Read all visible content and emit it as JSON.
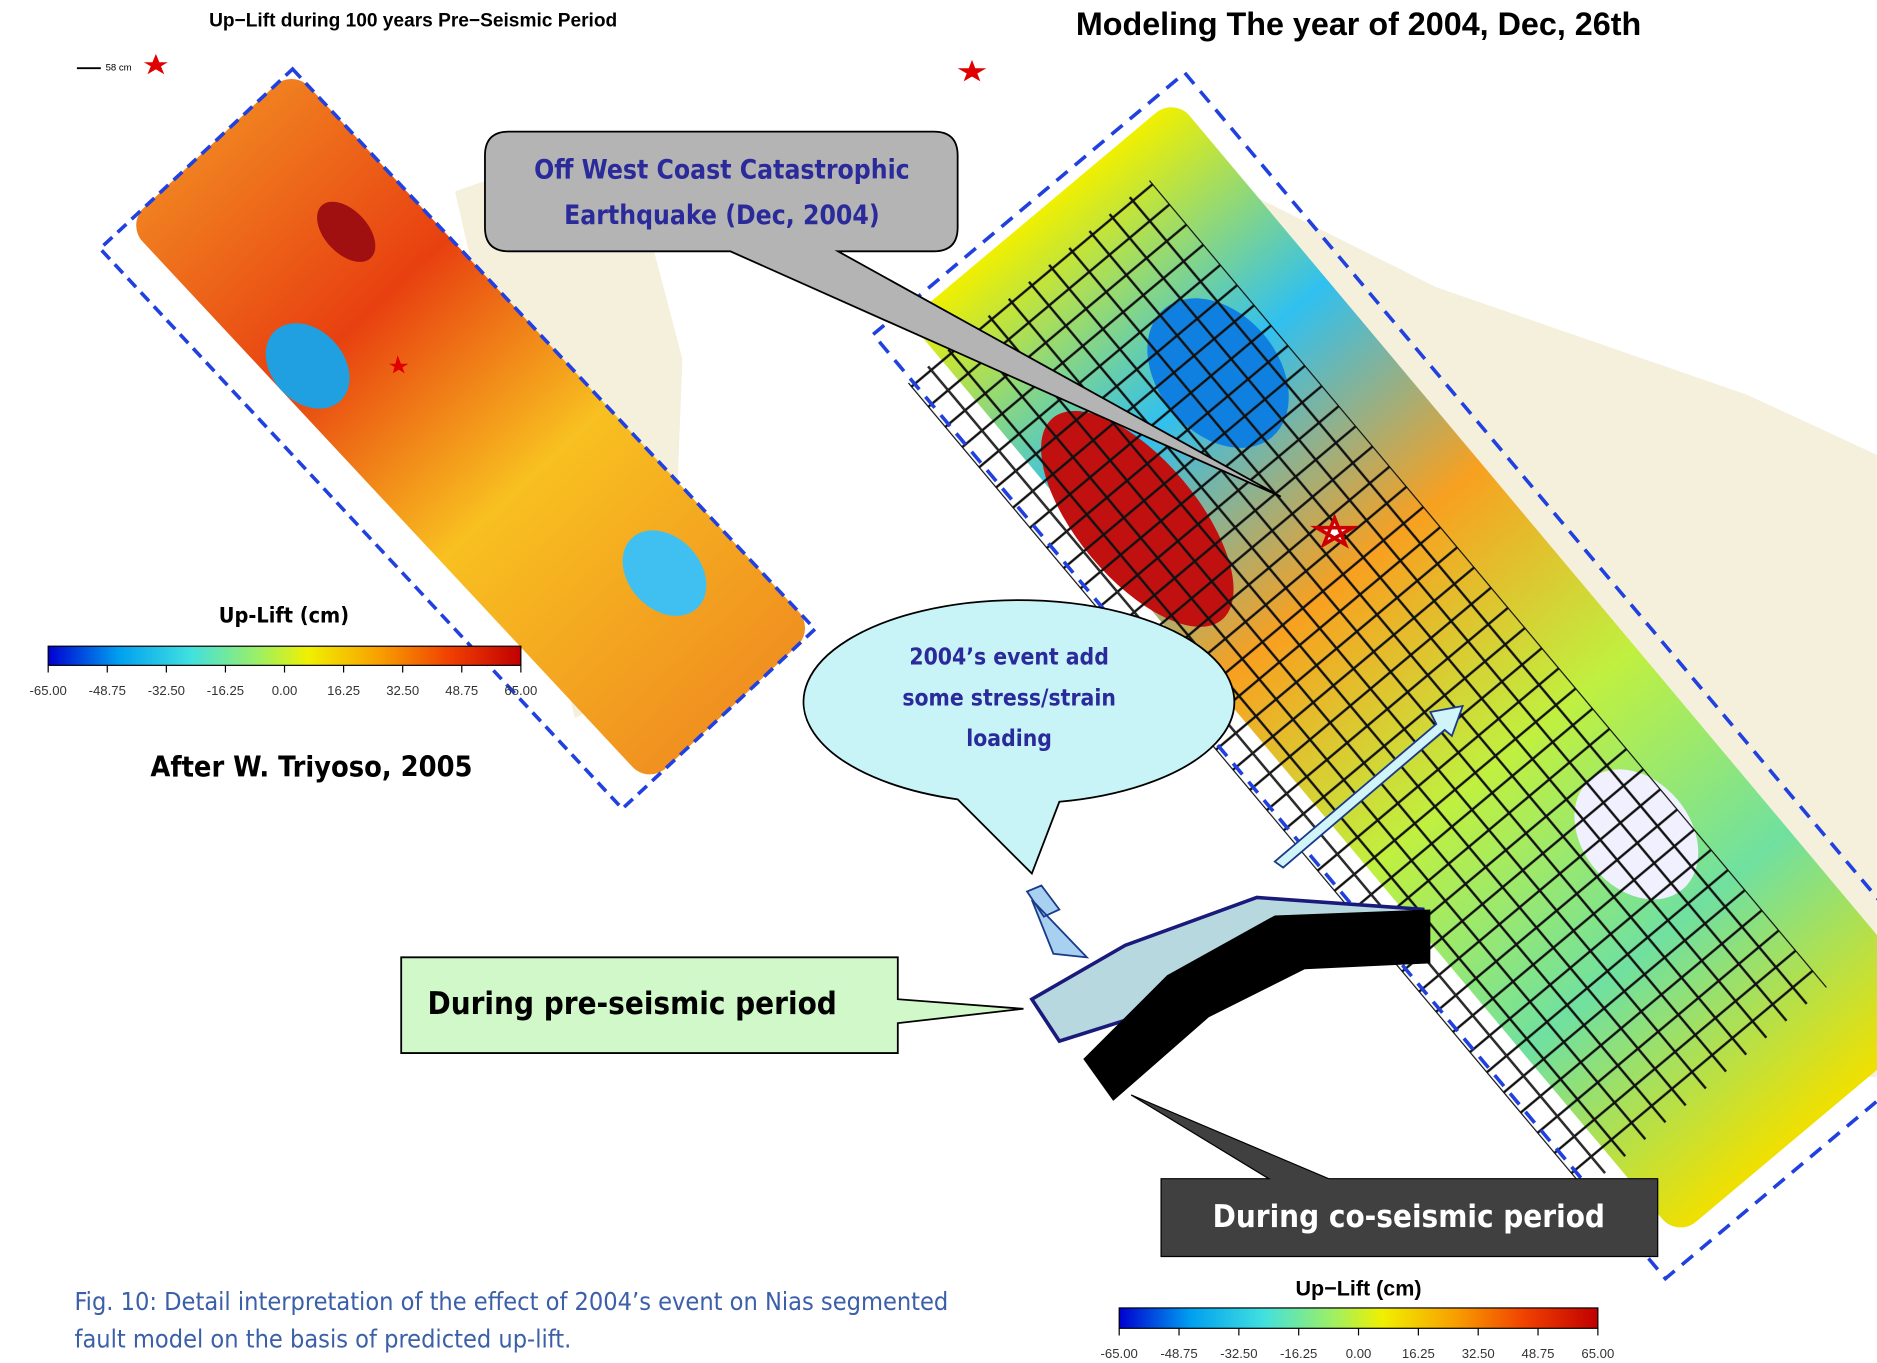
{
  "left_panel": {
    "title": "Up−Lift during 100 years Pre−Seismic Period",
    "scale_label": "58 cm",
    "colorbar": {
      "label": "Up-Lift (cm)",
      "ticks": [
        "-65.00",
        "-48.75",
        "-32.50",
        "-16.25",
        "0.00",
        "16.25",
        "32.50",
        "48.75",
        "65.00"
      ]
    },
    "credit": "After W. Triyoso, 2005"
  },
  "right_panel": {
    "title": "Modeling The year of 2004, Dec, 26th",
    "colorbar": {
      "label": "Up−Lift (cm)",
      "ticks": [
        "-65.00",
        "-48.75",
        "-32.50",
        "-16.25",
        "0.00",
        "16.25",
        "32.50",
        "48.75",
        "65.00"
      ]
    }
  },
  "callouts": {
    "earthquake": [
      "Off West Coast Catastrophic",
      "Earthquake (Dec, 2004)"
    ],
    "stress": [
      "2004’s event add",
      "some stress/strain",
      "loading"
    ],
    "pre_seismic": "During pre-seismic period",
    "co_seismic": "During co-seismic period"
  },
  "caption": [
    "Fig. 10: Detail interpretation of the effect of 2004’s event on Nias segmented",
    "fault model on the basis of predicted up-lift."
  ]
}
